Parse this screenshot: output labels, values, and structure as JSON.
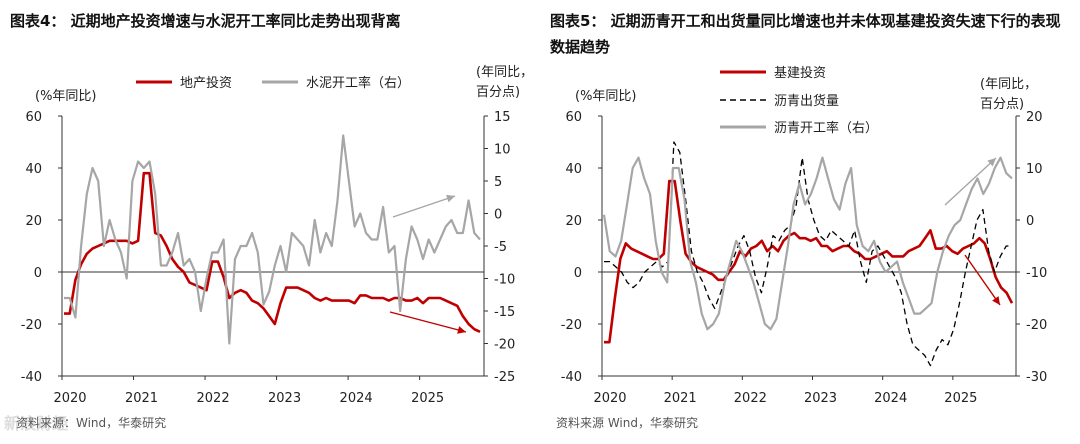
{
  "charts": [
    {
      "title": "图表4： 近期地产投资增速与水泥开工率同比走势出现背离",
      "source": "资料来源：Wind，华泰研究",
      "chart_data": {
        "type": "line",
        "x_labels": [
          "2020",
          "2021",
          "2022",
          "2023",
          "2024",
          "2025"
        ],
        "left_axis": {
          "label": "(%年同比)",
          "ticks": [
            60,
            40,
            20,
            0,
            -20,
            -40
          ],
          "range": [
            -40,
            60
          ]
        },
        "right_axis": {
          "label_line1": "(年同比，",
          "label_line2": "百分点)",
          "ticks": [
            15,
            10,
            5,
            0,
            -5,
            -10,
            -15,
            -20,
            -25
          ],
          "range": [
            -25,
            15
          ]
        },
        "series": [
          {
            "name": "地产投资",
            "axis": "left",
            "color": "#c00000",
            "style": "solid",
            "values": [
              -16,
              -16,
              -3,
              3,
              7,
              9,
              10,
              11,
              12,
              12,
              12,
              12,
              11,
              12,
              38,
              38,
              15,
              14,
              10,
              5,
              2,
              0,
              -4,
              -5,
              -6,
              -7,
              4,
              4,
              -2,
              -10,
              -8,
              -7,
              -8,
              -11,
              -12,
              -14,
              -17,
              -20,
              -12,
              -6,
              -6,
              -6,
              -7,
              -8,
              -10,
              -11,
              -10,
              -11,
              -11,
              -11,
              -11,
              -12,
              -9,
              -9,
              -10,
              -10,
              -10,
              -11,
              -10,
              -10,
              -11,
              -11,
              -10,
              -12,
              -10,
              -10,
              -10,
              -11,
              -12,
              -13,
              -17,
              -20,
              -22,
              -23
            ]
          },
          {
            "name": "水泥开工率（右）",
            "axis": "right",
            "color": "#a6a6a6",
            "style": "solid",
            "values": [
              -13,
              -13,
              -16,
              -5,
              3,
              7,
              5,
              -5,
              -1,
              -4,
              -6,
              -10,
              5,
              8,
              7,
              8,
              3,
              -8,
              -8,
              -6,
              -3,
              -8,
              -7,
              -9,
              -15,
              -10,
              -6,
              -6,
              -4,
              -20,
              -7,
              -5,
              -5,
              -3,
              -6,
              -14,
              -12,
              -8,
              -5,
              -9,
              -3,
              -4,
              -5,
              -8,
              -1,
              -6,
              -3,
              -5,
              2,
              12,
              5,
              -2,
              0,
              -3,
              -4,
              -4,
              1,
              -6,
              -5,
              -15,
              -7,
              -2,
              -4,
              -7,
              -4,
              -6,
              -4,
              -2,
              -1,
              -3,
              -3,
              2,
              -3,
              -4
            ]
          }
        ],
        "annotation": "arrows show divergence: gray up, red down"
      }
    },
    {
      "title": "图表5： 近期沥青开工和出货量同比增速也并未体现基建投资失速下行的表现数据趋势",
      "source": "资料来源 Wind，华泰研究",
      "chart_data": {
        "type": "line",
        "x_labels": [
          "2020",
          "2021",
          "2022",
          "2023",
          "2024",
          "2025"
        ],
        "left_axis": {
          "label": "(%年同比)",
          "ticks": [
            60,
            40,
            20,
            0,
            -20,
            -40
          ],
          "range": [
            -40,
            60
          ]
        },
        "right_axis": {
          "label_line1": "(年同比，",
          "label_line2": "百分点)",
          "ticks": [
            20,
            10,
            0,
            -10,
            -20,
            -30
          ],
          "range": [
            -30,
            20
          ]
        },
        "series": [
          {
            "name": "基建投资",
            "axis": "left",
            "color": "#c00000",
            "style": "solid",
            "values": [
              -27,
              -27,
              -10,
              5,
              11,
              9,
              8,
              7,
              6,
              5,
              5,
              7,
              35,
              35,
              20,
              7,
              4,
              2,
              1,
              0,
              -1,
              -3,
              -3,
              0,
              3,
              8,
              6,
              9,
              10,
              12,
              8,
              10,
              8,
              12,
              14,
              15,
              13,
              13,
              12,
              13,
              10,
              10,
              8,
              9,
              10,
              10,
              8,
              7,
              5,
              5,
              6,
              7,
              8,
              6,
              6,
              6,
              8,
              9,
              10,
              13,
              16,
              9,
              9,
              10,
              8,
              7,
              9,
              10,
              11,
              13,
              11,
              5,
              -2,
              -6,
              -8,
              -12
            ]
          },
          {
            "name": "沥青出货量",
            "axis": "right",
            "color": "#000000",
            "style": "dash",
            "values": [
              -8,
              -8,
              -9,
              -10,
              -12,
              -13,
              -12,
              -10,
              -9,
              -8,
              -9,
              -8,
              15,
              13,
              4,
              -6,
              -10,
              -12,
              -15,
              -17,
              -14,
              -11,
              -8,
              -5,
              -3,
              -6,
              -11,
              -14,
              -9,
              -3,
              -4,
              -2,
              -1,
              3,
              12,
              4,
              0,
              -3,
              -4,
              -2,
              -3,
              -4,
              -5,
              -2,
              -8,
              -12,
              -6,
              -5,
              -7,
              -9,
              -11,
              -14,
              -20,
              -24,
              -25,
              -26,
              -28,
              -25,
              -23,
              -24,
              -21,
              -16,
              -10,
              -5,
              0,
              2,
              -6,
              -10,
              -7,
              -5,
              -5
            ]
          },
          {
            "name": "沥青开工率（右）",
            "axis": "right",
            "color": "#a6a6a6",
            "style": "solid",
            "values": [
              1,
              -6,
              -7,
              -4,
              3,
              10,
              12,
              8,
              5,
              -4,
              -10,
              -12,
              10,
              10,
              4,
              -8,
              -12,
              -18,
              -21,
              -20,
              -18,
              -12,
              -8,
              -4,
              -6,
              -9,
              -12,
              -16,
              -20,
              -21,
              -19,
              -12,
              -5,
              3,
              7,
              3,
              5,
              8,
              12,
              8,
              4,
              2,
              7,
              10,
              -1,
              -5,
              -6,
              -4,
              -8,
              -10,
              -9,
              -8,
              -12,
              -15,
              -18,
              -18,
              -17,
              -16,
              -10,
              -6,
              -3,
              -1,
              0,
              3,
              6,
              8,
              5,
              7,
              10,
              12,
              9,
              8
            ]
          }
        ],
        "annotation": "arrows: gray up, red down"
      }
    }
  ],
  "watermark": "新浪财经"
}
